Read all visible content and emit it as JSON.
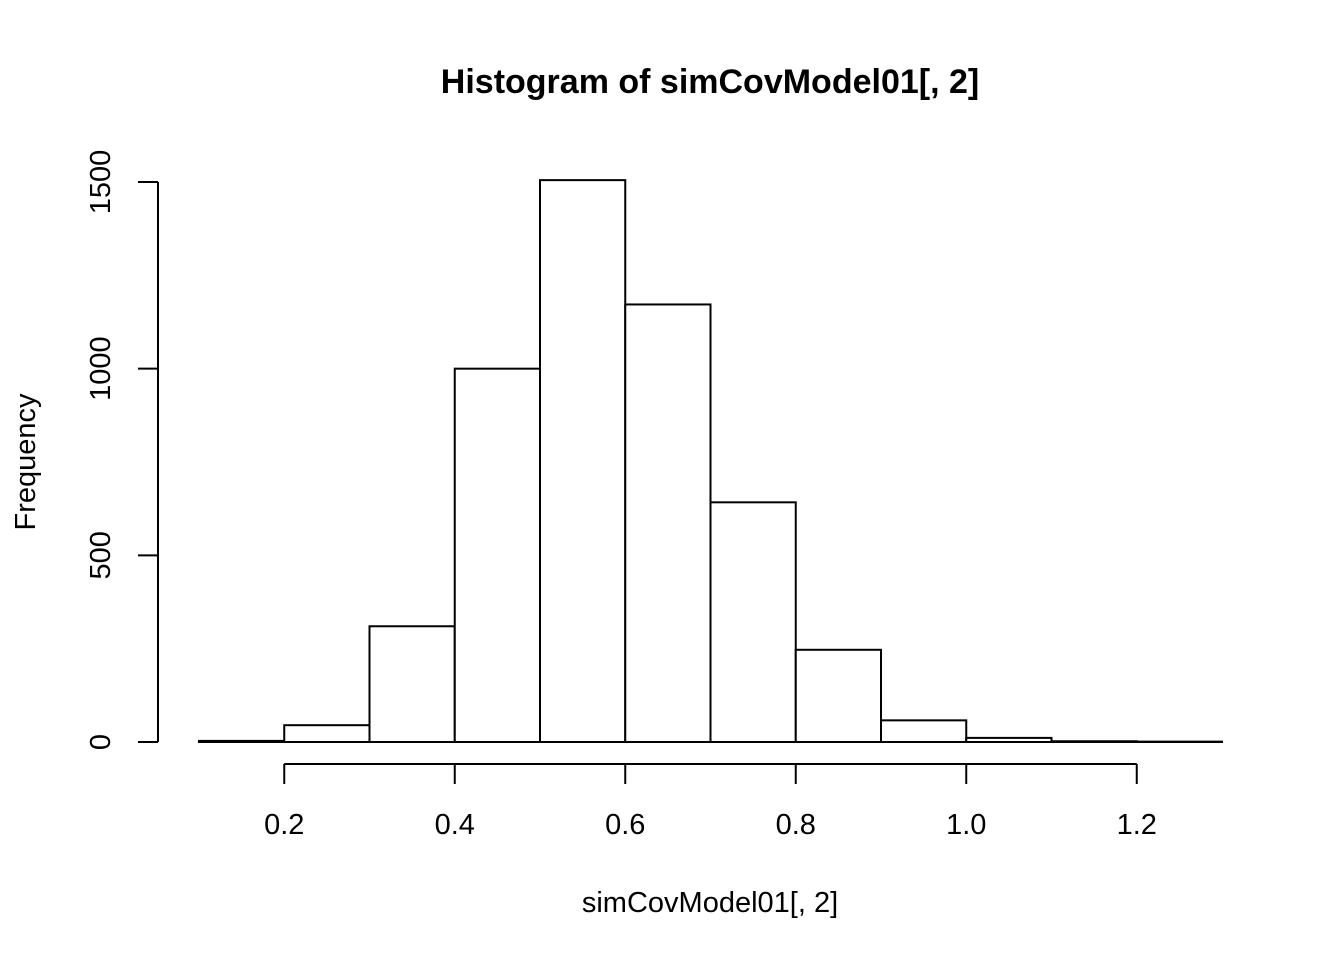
{
  "chart_data": {
    "type": "bar",
    "title": "Histogram of simCovModel01[, 2]",
    "xlabel": "simCovModel01[, 2]",
    "ylabel": "Frequency",
    "bin_edges": [
      0.1,
      0.2,
      0.3,
      0.4,
      0.5,
      0.6,
      0.7,
      0.8,
      0.9,
      1.0,
      1.1,
      1.2,
      1.3
    ],
    "values": [
      3,
      45,
      310,
      1000,
      1505,
      1172,
      642,
      247,
      58,
      11,
      2,
      1
    ],
    "xlim": [
      0.1,
      1.3
    ],
    "ylim": [
      0,
      1500
    ],
    "x_ticks": [
      0.2,
      0.4,
      0.6,
      0.8,
      1.0,
      1.2
    ],
    "x_tick_labels": [
      "0.2",
      "0.4",
      "0.6",
      "0.8",
      "1.0",
      "1.2"
    ],
    "y_ticks": [
      0,
      500,
      1000,
      1500
    ],
    "y_tick_labels": [
      "0",
      "500",
      "1000",
      "1500"
    ],
    "grid": false,
    "bar_fill": "#ffffff",
    "bar_stroke": "#000000"
  }
}
